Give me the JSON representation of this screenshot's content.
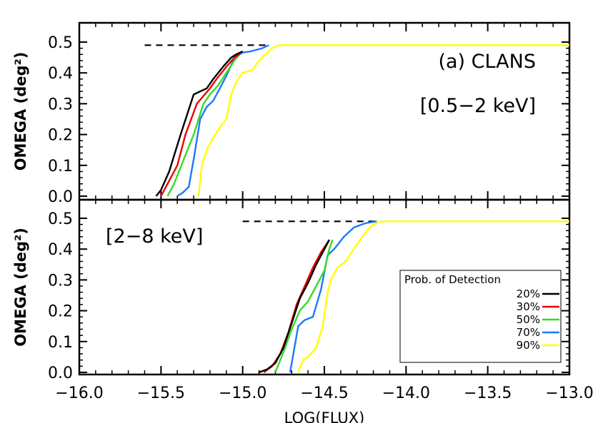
{
  "chart_data": {
    "type": "line",
    "xlabel": "LOG(FLUX)",
    "xlim": [
      -16.0,
      -13.0
    ],
    "x_ticks": [
      "−16.0",
      "−15.5",
      "−15.0",
      "−14.5",
      "−14.0",
      "−13.5",
      "−13.0"
    ],
    "y_ticks": [
      "0.0",
      "0.1",
      "0.2",
      "0.3",
      "0.4",
      "0.5"
    ],
    "grid": false,
    "legend": {
      "title": "Prob. of Detection",
      "placement": "bottom-right of lower panel",
      "entries": [
        {
          "label": "20%",
          "color": "#000000"
        },
        {
          "label": "30%",
          "color": "#ee0000"
        },
        {
          "label": "50%",
          "color": "#33dd22"
        },
        {
          "label": "70%",
          "color": "#1e78ff"
        },
        {
          "label": "90%",
          "color": "#ffff00"
        }
      ]
    },
    "panels": [
      {
        "ylabel": "OMEGA (deg²)",
        "ylim": [
          0.0,
          0.5
        ],
        "annotations": [
          "(a) CLANS",
          "[0.5−2 keV]"
        ],
        "max_area": 0.49,
        "max_area_line_x": [
          -15.6,
          -14.84
        ],
        "series": [
          {
            "name": "20%",
            "color": "#000000",
            "x": [
              -15.53,
              -15.5,
              -15.45,
              -15.38,
              -15.3,
              -15.22,
              -15.18,
              -15.12,
              -15.07,
              -15.04,
              -15.0
            ],
            "y": [
              0.0,
              0.02,
              0.08,
              0.2,
              0.33,
              0.35,
              0.38,
              0.42,
              0.45,
              0.46,
              0.47
            ]
          },
          {
            "name": "30%",
            "color": "#ee0000",
            "x": [
              -15.5,
              -15.46,
              -15.4,
              -15.35,
              -15.28,
              -15.2,
              -15.16,
              -15.1,
              -15.05,
              -15.02
            ],
            "y": [
              0.0,
              0.04,
              0.1,
              0.2,
              0.3,
              0.35,
              0.38,
              0.42,
              0.45,
              0.46
            ]
          },
          {
            "name": "50%",
            "color": "#33dd22",
            "x": [
              -15.46,
              -15.42,
              -15.36,
              -15.3,
              -15.24,
              -15.2,
              -15.15,
              -15.1,
              -15.05,
              -15.02
            ],
            "y": [
              0.0,
              0.04,
              0.12,
              0.2,
              0.3,
              0.33,
              0.36,
              0.4,
              0.44,
              0.46
            ]
          },
          {
            "name": "70%",
            "color": "#1e78ff",
            "x": [
              -15.4,
              -15.37,
              -15.33,
              -15.3,
              -15.26,
              -15.22,
              -15.18,
              -15.14,
              -15.1,
              -15.05,
              -15.0,
              -14.95,
              -14.88,
              -14.84
            ],
            "y": [
              0.0,
              0.01,
              0.03,
              0.12,
              0.25,
              0.29,
              0.31,
              0.35,
              0.39,
              0.45,
              0.466,
              0.47,
              0.48,
              0.49
            ]
          },
          {
            "name": "90%",
            "color": "#ffff00",
            "x": [
              -15.27,
              -15.25,
              -15.22,
              -15.18,
              -15.13,
              -15.1,
              -15.07,
              -15.04,
              -15.0,
              -14.94,
              -14.9,
              -14.86,
              -14.82,
              -14.78,
              -13.0
            ],
            "y": [
              0.0,
              0.1,
              0.15,
              0.19,
              0.23,
              0.25,
              0.33,
              0.37,
              0.4,
              0.41,
              0.44,
              0.46,
              0.48,
              0.49,
              0.49
            ]
          }
        ]
      },
      {
        "ylabel": "OMEGA (deg²)",
        "ylim": [
          0.0,
          0.5
        ],
        "annotations": [
          "[2−8 keV]"
        ],
        "max_area": 0.49,
        "max_area_line_x": [
          -15.0,
          -14.18
        ],
        "series": [
          {
            "name": "20%",
            "color": "#000000",
            "x": [
              -14.9,
              -14.85,
              -14.8,
              -14.75,
              -14.7,
              -14.65,
              -14.6,
              -14.55,
              -14.5,
              -14.47
            ],
            "y": [
              0.0,
              0.01,
              0.03,
              0.08,
              0.16,
              0.24,
              0.29,
              0.35,
              0.4,
              0.43
            ]
          },
          {
            "name": "30%",
            "color": "#ee0000",
            "x": [
              -14.87,
              -14.82,
              -14.77,
              -14.72,
              -14.67,
              -14.62,
              -14.57,
              -14.52,
              -14.47
            ],
            "y": [
              0.0,
              0.02,
              0.06,
              0.13,
              0.22,
              0.28,
              0.34,
              0.39,
              0.43
            ]
          },
          {
            "name": "50%",
            "color": "#33dd22",
            "x": [
              -14.8,
              -14.77,
              -14.74,
              -14.7,
              -14.65,
              -14.6,
              -14.55,
              -14.5,
              -14.47,
              -14.45
            ],
            "y": [
              0.0,
              0.04,
              0.08,
              0.14,
              0.2,
              0.23,
              0.28,
              0.33,
              0.4,
              0.43
            ]
          },
          {
            "name": "70%",
            "color": "#1e78ff",
            "x": [
              -14.71,
              -14.69,
              -14.66,
              -14.62,
              -14.57,
              -14.52,
              -14.48,
              -14.44,
              -14.38,
              -14.32,
              -14.27,
              -14.24,
              -14.18
            ],
            "y": [
              0.0,
              0.06,
              0.15,
              0.17,
              0.18,
              0.27,
              0.38,
              0.4,
              0.44,
              0.47,
              0.48,
              0.485,
              0.49
            ]
          },
          {
            "name": "90%",
            "color": "#ffff00",
            "x": [
              -14.66,
              -14.63,
              -14.6,
              -14.55,
              -14.51,
              -14.48,
              -14.46,
              -14.42,
              -14.37,
              -14.32,
              -14.28,
              -14.24,
              -14.2,
              -14.15,
              -14.1,
              -13.0
            ],
            "y": [
              0.0,
              0.04,
              0.05,
              0.08,
              0.15,
              0.26,
              0.3,
              0.34,
              0.36,
              0.4,
              0.43,
              0.46,
              0.48,
              0.49,
              0.49,
              0.49
            ]
          }
        ]
      }
    ]
  }
}
